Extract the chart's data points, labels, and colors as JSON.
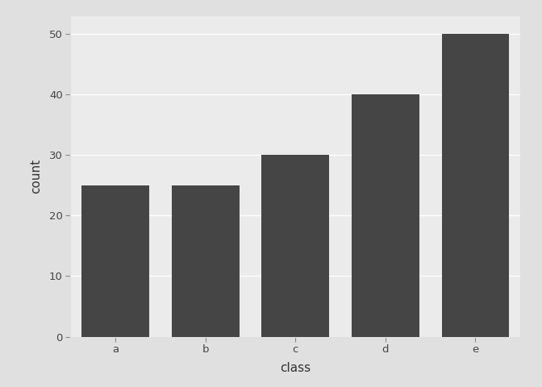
{
  "categories": [
    "a",
    "b",
    "c",
    "d",
    "e"
  ],
  "values": [
    25,
    25,
    30,
    40,
    50
  ],
  "bar_color": "#454545",
  "title": "",
  "xlabel": "class",
  "ylabel": "count",
  "ylim": [
    0,
    53
  ],
  "yticks": [
    0,
    10,
    20,
    30,
    40,
    50
  ],
  "panel_background": "#ebebeb",
  "grid_color": "#ffffff",
  "outer_background": "#e0e0e0",
  "axis_label_fontsize": 11,
  "tick_label_fontsize": 9.5,
  "bar_width": 0.75
}
